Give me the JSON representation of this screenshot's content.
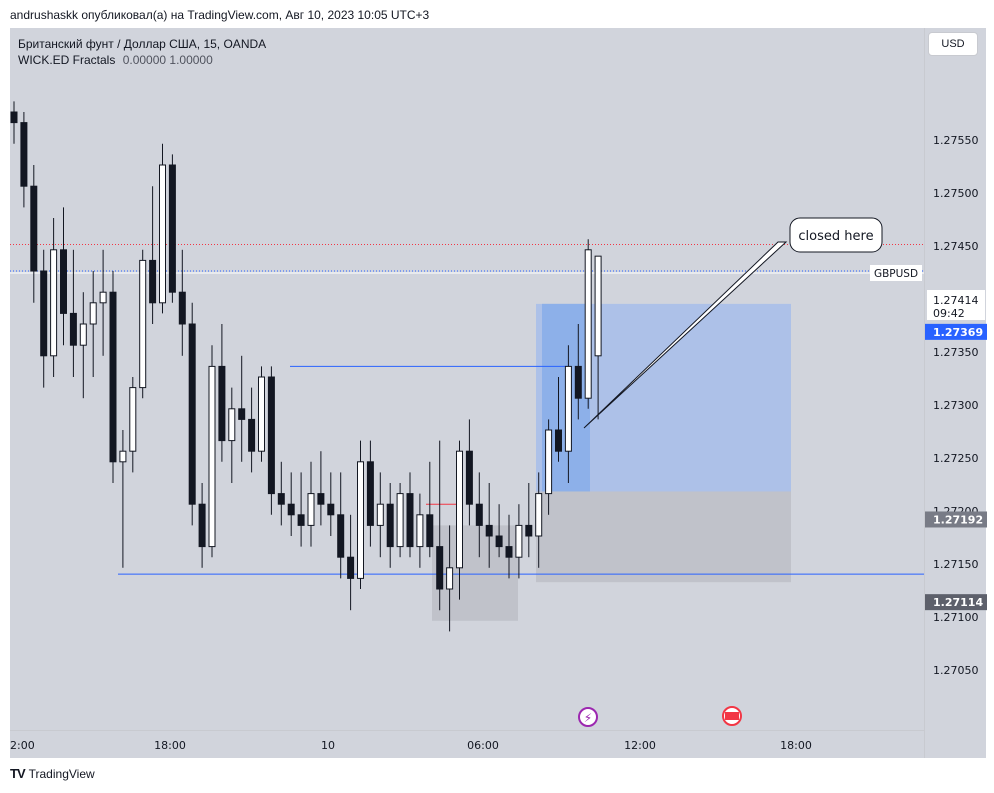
{
  "header": {
    "attribution": "andrushaskk опубликовал(а) на TradingView.com, Авг 10, 2023 10:05 UTC+3"
  },
  "legend": {
    "symbol": "Британский фунт / Доллар США, 15, OANDA",
    "indicator_name": "WICK.ED Fractals",
    "indicator_values": "0.00000  1.00000"
  },
  "currency_button": "USD",
  "footer": {
    "brand": "TradingView"
  },
  "chart_data": {
    "type": "candlestick",
    "symbol": "GBPUSD",
    "timeframe": "15",
    "price_axis": {
      "ticks": [
        "1.27550",
        "1.27500",
        "1.27450",
        "1.27350",
        "1.27300",
        "1.27250",
        "1.27200",
        "1.27150",
        "1.27100",
        "1.27050"
      ],
      "range": [
        1.2702,
        1.2762
      ]
    },
    "time_axis": {
      "ticks": [
        "2:00",
        "18:00",
        "10",
        "06:00",
        "12:00",
        "18:00"
      ]
    },
    "last_price": {
      "symbol_label": "GBPUSD",
      "value": "1.27414",
      "countdown": "09:42"
    },
    "price_labels": [
      {
        "value": "1.27369",
        "color": "#2962ff"
      },
      {
        "value": "1.27192",
        "color": "#787b86"
      },
      {
        "value": "1.27114",
        "color": "#5d606b"
      }
    ],
    "horizontal_lines": [
      {
        "price": 1.27114,
        "color": "#2962ff"
      },
      {
        "price": 1.2731,
        "color": "#2962ff"
      },
      {
        "price": 1.27425,
        "color": "#f23645",
        "style": "dotted"
      },
      {
        "price": 1.274,
        "color": "#2962ff",
        "style": "dotted"
      }
    ],
    "annotation": {
      "text": "closed here"
    },
    "candles": [
      [
        1.2755,
        1.2756,
        1.2752,
        1.2754
      ],
      [
        1.2754,
        1.2755,
        1.2746,
        1.2748
      ],
      [
        1.2748,
        1.275,
        1.2737,
        1.274
      ],
      [
        1.274,
        1.2742,
        1.2729,
        1.2732
      ],
      [
        1.2732,
        1.2745,
        1.273,
        1.2742
      ],
      [
        1.2742,
        1.2746,
        1.2733,
        1.2736
      ],
      [
        1.2736,
        1.2742,
        1.273,
        1.2733
      ],
      [
        1.2733,
        1.2738,
        1.2728,
        1.2735
      ],
      [
        1.2735,
        1.274,
        1.273,
        1.2737
      ],
      [
        1.2737,
        1.2742,
        1.2732,
        1.2738
      ],
      [
        1.2738,
        1.274,
        1.272,
        1.2722
      ],
      [
        1.2722,
        1.2725,
        1.2712,
        1.2723
      ],
      [
        1.2723,
        1.273,
        1.2721,
        1.2729
      ],
      [
        1.2729,
        1.2742,
        1.2728,
        1.2741
      ],
      [
        1.2741,
        1.2748,
        1.2735,
        1.2737
      ],
      [
        1.2737,
        1.2752,
        1.2736,
        1.275
      ],
      [
        1.275,
        1.2751,
        1.2737,
        1.2738
      ],
      [
        1.2738,
        1.2742,
        1.2732,
        1.2735
      ],
      [
        1.2735,
        1.2737,
        1.2716,
        1.2718
      ],
      [
        1.2718,
        1.272,
        1.2712,
        1.2714
      ],
      [
        1.2714,
        1.2733,
        1.2713,
        1.2731
      ],
      [
        1.2731,
        1.2735,
        1.2722,
        1.2724
      ],
      [
        1.2724,
        1.2729,
        1.272,
        1.2727
      ],
      [
        1.2727,
        1.2732,
        1.2722,
        1.2726
      ],
      [
        1.2726,
        1.2729,
        1.2721,
        1.2723
      ],
      [
        1.2723,
        1.2731,
        1.2722,
        1.273
      ],
      [
        1.273,
        1.2731,
        1.2717,
        1.2719
      ],
      [
        1.2719,
        1.2722,
        1.2716,
        1.2718
      ],
      [
        1.2718,
        1.2721,
        1.2715,
        1.2717
      ],
      [
        1.2717,
        1.2721,
        1.2714,
        1.2716
      ],
      [
        1.2716,
        1.2722,
        1.2714,
        1.2719
      ],
      [
        1.2719,
        1.2723,
        1.2716,
        1.2718
      ],
      [
        1.2718,
        1.2721,
        1.2715,
        1.2717
      ],
      [
        1.2717,
        1.2721,
        1.2711,
        1.2713
      ],
      [
        1.2713,
        1.2717,
        1.2708,
        1.2711
      ],
      [
        1.2711,
        1.2724,
        1.271,
        1.2722
      ],
      [
        1.2722,
        1.2724,
        1.2714,
        1.2716
      ],
      [
        1.2716,
        1.2721,
        1.2713,
        1.2718
      ],
      [
        1.2718,
        1.272,
        1.2712,
        1.2714
      ],
      [
        1.2714,
        1.272,
        1.2713,
        1.2719
      ],
      [
        1.2719,
        1.2721,
        1.2713,
        1.2714
      ],
      [
        1.2714,
        1.2719,
        1.2712,
        1.2717
      ],
      [
        1.2717,
        1.2722,
        1.2713,
        1.2714
      ],
      [
        1.2714,
        1.2724,
        1.2708,
        1.271
      ],
      [
        1.271,
        1.2716,
        1.2706,
        1.2712
      ],
      [
        1.2712,
        1.2724,
        1.2709,
        1.2723
      ],
      [
        1.2723,
        1.2726,
        1.2716,
        1.2718
      ],
      [
        1.2718,
        1.2721,
        1.2713,
        1.2716
      ],
      [
        1.2716,
        1.272,
        1.2712,
        1.2715
      ],
      [
        1.2715,
        1.2718,
        1.2713,
        1.2714
      ],
      [
        1.2714,
        1.2717,
        1.2711,
        1.2713
      ],
      [
        1.2713,
        1.2718,
        1.2711,
        1.2716
      ],
      [
        1.2716,
        1.272,
        1.2713,
        1.2715
      ],
      [
        1.2715,
        1.2721,
        1.2712,
        1.2719
      ],
      [
        1.2719,
        1.2726,
        1.2717,
        1.2725
      ],
      [
        1.2725,
        1.273,
        1.2722,
        1.2723
      ],
      [
        1.2723,
        1.2733,
        1.272,
        1.2731
      ],
      [
        1.2731,
        1.2735,
        1.2726,
        1.2728
      ],
      [
        1.2728,
        1.2743,
        1.2727,
        1.2742
      ]
    ]
  }
}
